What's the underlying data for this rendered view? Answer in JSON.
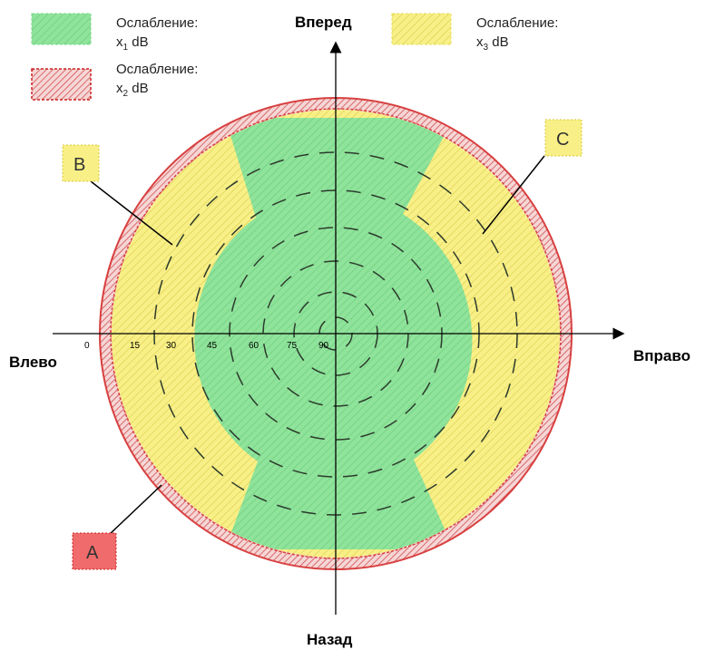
{
  "legend": [
    {
      "label": "Ослабление:",
      "value": "x",
      "sub": "1",
      "unit": " dB",
      "swatch": "green"
    },
    {
      "label": "Ослабление:",
      "value": "x",
      "sub": "2",
      "unit": " dB",
      "swatch": "red"
    },
    {
      "label": "Ослабление:",
      "value": "x",
      "sub": "3",
      "unit": " dB",
      "swatch": "yellow"
    }
  ],
  "directions": {
    "forward": "Вперед",
    "back": "Назад",
    "left": "Влево",
    "right": "Вправо"
  },
  "angle_ticks": [
    "0",
    "15",
    "30",
    "45",
    "60",
    "75",
    "90"
  ],
  "callouts": {
    "a": "A",
    "b": "B",
    "c": "C"
  },
  "colors": {
    "green": "#8fe39b",
    "yellow": "#f8f087",
    "red_ring": "#dd4545",
    "red_ring_fill": "#f2c3c3",
    "callout_a_fill": "#f06b6b",
    "callout_yellow_fill": "#f8f087",
    "dash_circles": "#2c3a2c"
  }
}
